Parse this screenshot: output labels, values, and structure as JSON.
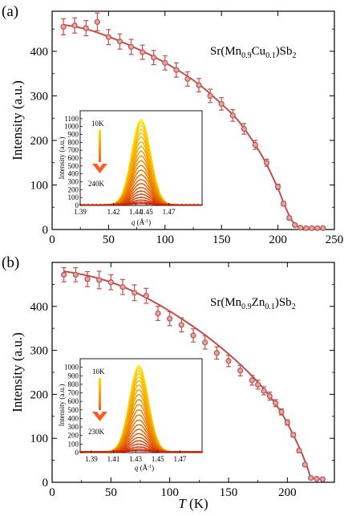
{
  "colors": {
    "main_series": "#c0504d",
    "inset_cold": "#ffe000",
    "inset_hot": "#d42000",
    "arrow": "#ff5a1f",
    "axes": "#000000"
  },
  "chart_data": [
    {
      "type": "scatter",
      "panel_label": "(a)",
      "annotation": "Sr(Mn0.9Cu0.1)Sb2",
      "annotation_parts": {
        "pre": "Sr(Mn",
        "sub1": "0.9",
        "mid": "Cu",
        "sub2": "0.1",
        "post": ")Sb",
        "sub3": "2"
      },
      "xlabel": "",
      "ylabel": "Intensity (a.u.)",
      "xlim": [
        0,
        250
      ],
      "ylim": [
        0,
        490
      ],
      "xticks": [
        0,
        50,
        100,
        150,
        200,
        250
      ],
      "yticks": [
        0,
        100,
        200,
        300,
        400
      ],
      "x_tick_labels_shown": true,
      "points": [
        {
          "x": 10,
          "y": 455,
          "err": 18
        },
        {
          "x": 20,
          "y": 458,
          "err": 17
        },
        {
          "x": 30,
          "y": 452,
          "err": 17
        },
        {
          "x": 40,
          "y": 466,
          "err": 20
        },
        {
          "x": 50,
          "y": 432,
          "err": 17
        },
        {
          "x": 60,
          "y": 422,
          "err": 17
        },
        {
          "x": 70,
          "y": 410,
          "err": 17
        },
        {
          "x": 80,
          "y": 398,
          "err": 16
        },
        {
          "x": 90,
          "y": 386,
          "err": 16
        },
        {
          "x": 100,
          "y": 374,
          "err": 16
        },
        {
          "x": 110,
          "y": 358,
          "err": 16
        },
        {
          "x": 120,
          "y": 338,
          "err": 16
        },
        {
          "x": 130,
          "y": 324,
          "err": 15
        },
        {
          "x": 140,
          "y": 300,
          "err": 15
        },
        {
          "x": 150,
          "y": 282,
          "err": 14
        },
        {
          "x": 160,
          "y": 256,
          "err": 13
        },
        {
          "x": 170,
          "y": 226,
          "err": 12
        },
        {
          "x": 180,
          "y": 190,
          "err": 10
        },
        {
          "x": 190,
          "y": 150,
          "err": 8
        },
        {
          "x": 200,
          "y": 96,
          "err": 6
        },
        {
          "x": 205,
          "y": 58,
          "err": 5
        },
        {
          "x": 210,
          "y": 26,
          "err": 4
        },
        {
          "x": 215,
          "y": 10,
          "err": 3
        },
        {
          "x": 220,
          "y": 4,
          "err": 2
        },
        {
          "x": 225,
          "y": 3,
          "err": 2
        },
        {
          "x": 230,
          "y": 3,
          "err": 2
        },
        {
          "x": 235,
          "y": 3,
          "err": 2
        },
        {
          "x": 240,
          "y": 3,
          "err": 2
        }
      ],
      "fit_curve": {
        "x": [
          10,
          30,
          50,
          70,
          90,
          110,
          130,
          150,
          165,
          180,
          190,
          200,
          206,
          212,
          218,
          225,
          240
        ],
        "y": [
          460,
          450,
          433,
          412,
          388,
          360,
          326,
          282,
          244,
          190,
          146,
          92,
          54,
          22,
          6,
          2,
          1
        ]
      },
      "inset": {
        "type": "line",
        "xlabel_italic": "q",
        "xlabel_unit": " (Å",
        "xlabel_sup": "-1",
        "xlabel_close": ")",
        "ylabel": "Intensity (a.u.)",
        "xlim": [
          1.39,
          1.5
        ],
        "ylim": [
          0,
          1200
        ],
        "xticks": [
          1.39,
          1.42,
          1.44,
          1.45,
          1.47
        ],
        "yticks": [
          0,
          100,
          200,
          300,
          400,
          500,
          600,
          700,
          800,
          900,
          1000,
          1100
        ],
        "peak_center": 1.445,
        "peak_width": 0.0085,
        "baseline": 8,
        "peak_heights": [
          1080,
          1050,
          1010,
          960,
          910,
          860,
          800,
          740,
          680,
          620,
          560,
          500,
          440,
          380,
          320,
          270,
          220,
          175,
          135,
          95,
          60,
          35,
          15
        ],
        "temp_high_label": "10K",
        "temp_low_label": "240K"
      }
    },
    {
      "type": "scatter",
      "panel_label": "(b)",
      "annotation": "Sr(Mn0.9Zn0.1)Sb2",
      "annotation_parts": {
        "pre": "Sr(Mn",
        "sub1": "0.9",
        "mid": "Zn",
        "sub2": "0.1",
        "post": ")Sb",
        "sub3": "2"
      },
      "xlabel": "T (K)",
      "xlabel_italic": "T",
      "xlabel_unit": " (K)",
      "ylabel": "Intensity (a.u.)",
      "xlim": [
        0,
        240
      ],
      "ylim": [
        0,
        500
      ],
      "xticks": [
        0,
        50,
        100,
        150,
        200
      ],
      "yticks": [
        0,
        100,
        200,
        300,
        400
      ],
      "x_tick_labels_shown": true,
      "points": [
        {
          "x": 10,
          "y": 472,
          "err": 16
        },
        {
          "x": 20,
          "y": 472,
          "err": 16
        },
        {
          "x": 30,
          "y": 462,
          "err": 17
        },
        {
          "x": 40,
          "y": 460,
          "err": 20
        },
        {
          "x": 50,
          "y": 455,
          "err": 17
        },
        {
          "x": 60,
          "y": 444,
          "err": 17
        },
        {
          "x": 70,
          "y": 431,
          "err": 18
        },
        {
          "x": 80,
          "y": 424,
          "err": 17
        },
        {
          "x": 90,
          "y": 384,
          "err": 16
        },
        {
          "x": 100,
          "y": 372,
          "err": 16
        },
        {
          "x": 110,
          "y": 358,
          "err": 16
        },
        {
          "x": 120,
          "y": 334,
          "err": 15
        },
        {
          "x": 130,
          "y": 318,
          "err": 15
        },
        {
          "x": 140,
          "y": 294,
          "err": 14
        },
        {
          "x": 150,
          "y": 276,
          "err": 13
        },
        {
          "x": 160,
          "y": 254,
          "err": 12
        },
        {
          "x": 170,
          "y": 232,
          "err": 11
        },
        {
          "x": 175,
          "y": 222,
          "err": 10
        },
        {
          "x": 180,
          "y": 208,
          "err": 9
        },
        {
          "x": 185,
          "y": 196,
          "err": 9
        },
        {
          "x": 190,
          "y": 180,
          "err": 8
        },
        {
          "x": 195,
          "y": 160,
          "err": 7
        },
        {
          "x": 200,
          "y": 136,
          "err": 6
        },
        {
          "x": 205,
          "y": 108,
          "err": 5
        },
        {
          "x": 210,
          "y": 72,
          "err": 4
        },
        {
          "x": 215,
          "y": 40,
          "err": 3
        },
        {
          "x": 220,
          "y": 10,
          "err": 3
        },
        {
          "x": 225,
          "y": 8,
          "err": 2
        },
        {
          "x": 230,
          "y": 7,
          "err": 2
        }
      ],
      "fit_curve": {
        "x": [
          10,
          30,
          50,
          70,
          90,
          110,
          130,
          150,
          170,
          185,
          195,
          205,
          212,
          217,
          220,
          225,
          230
        ],
        "y": [
          480,
          470,
          455,
          433,
          405,
          372,
          335,
          292,
          242,
          196,
          158,
          108,
          68,
          34,
          12,
          8,
          7
        ]
      },
      "inset": {
        "type": "line",
        "xlabel_italic": "q",
        "xlabel_unit": " (Å",
        "xlabel_sup": "-1",
        "xlabel_close": ")",
        "ylabel": "Intensity (a.u.)",
        "xlim": [
          1.38,
          1.49
        ],
        "ylim": [
          0,
          1100
        ],
        "xticks": [
          1.39,
          1.41,
          1.43,
          1.45,
          1.47
        ],
        "yticks": [
          0,
          100,
          200,
          300,
          400,
          500,
          600,
          700,
          800,
          900,
          1000
        ],
        "peak_center": 1.433,
        "peak_width": 0.0085,
        "baseline": 8,
        "peak_heights": [
          1010,
          985,
          955,
          920,
          880,
          835,
          785,
          730,
          675,
          615,
          555,
          495,
          435,
          375,
          320,
          265,
          215,
          170,
          130,
          92,
          58,
          32,
          14
        ],
        "temp_high_label": "10K",
        "temp_low_label": "230K"
      }
    }
  ]
}
